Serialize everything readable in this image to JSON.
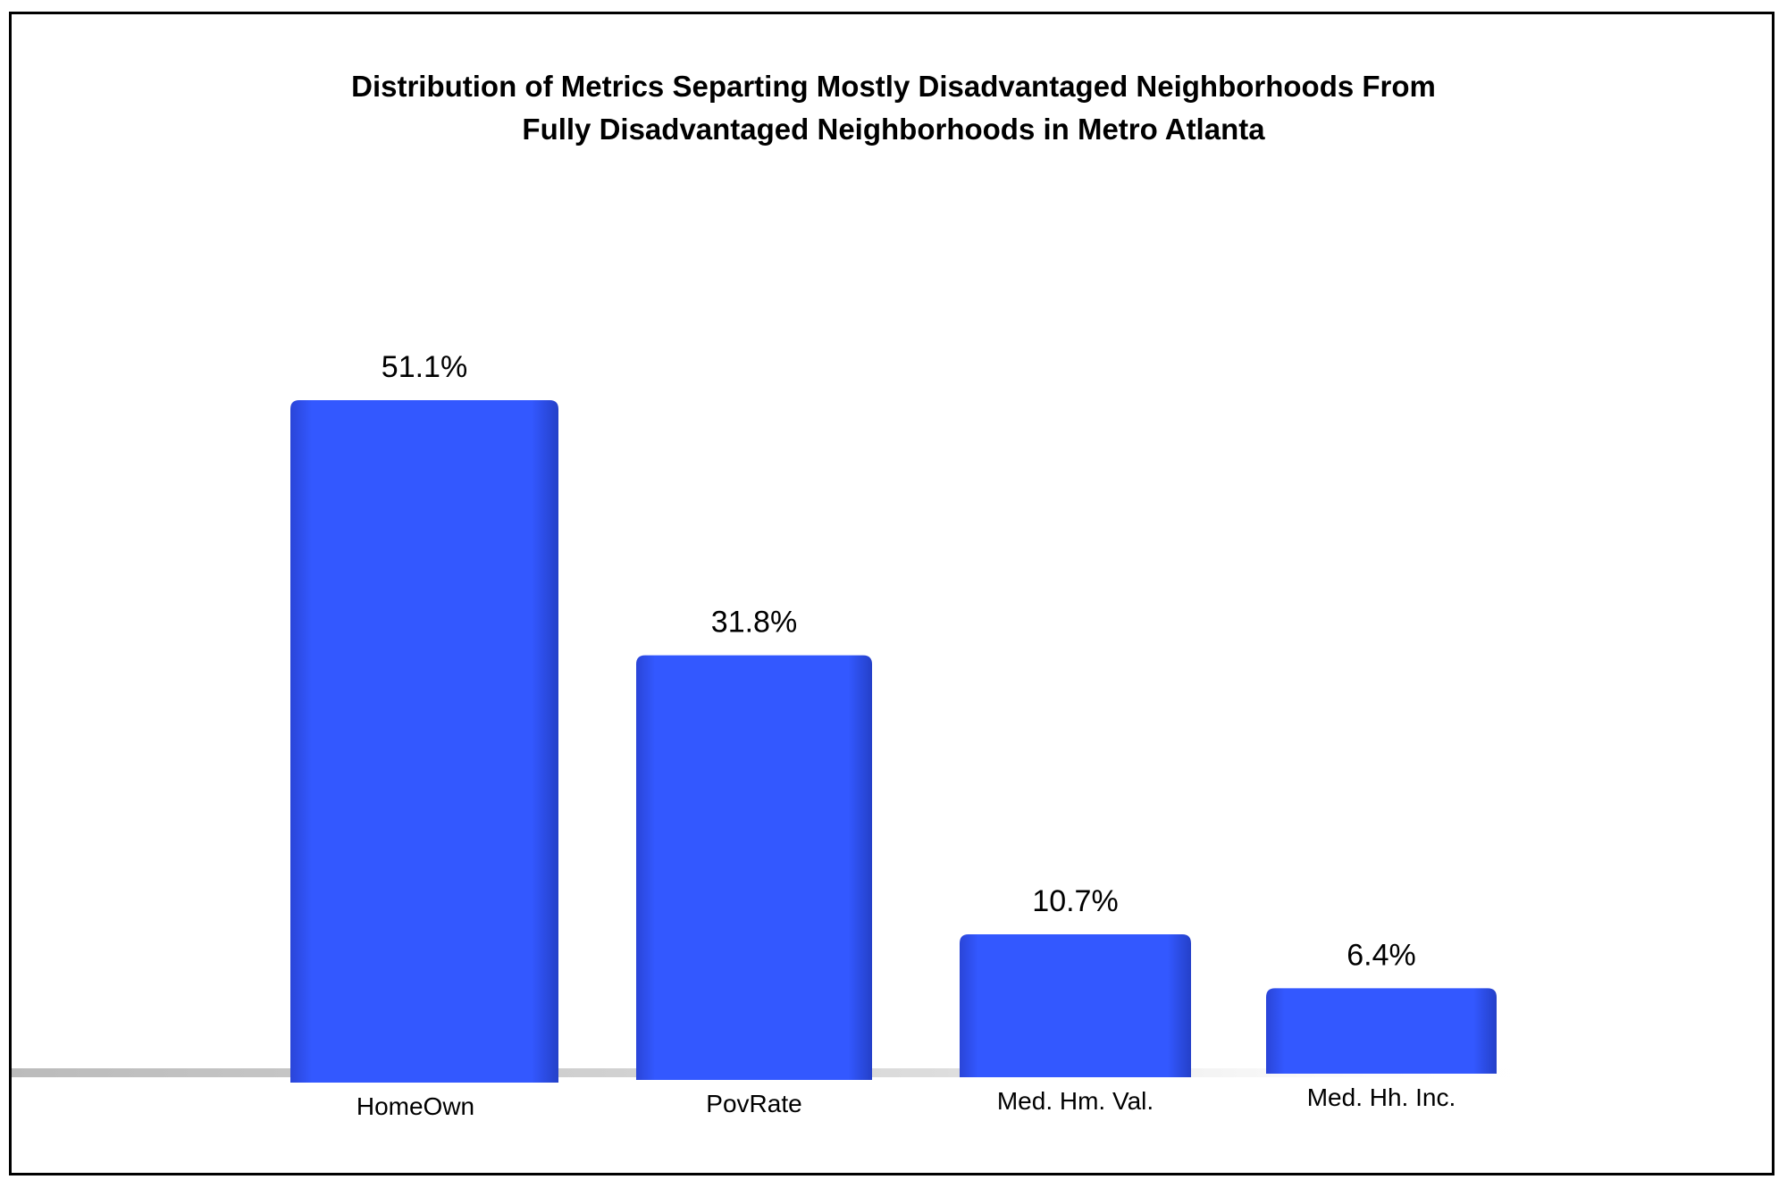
{
  "chart_data": {
    "type": "bar",
    "title": "Distribution of Metrics Separting Mostly Disadvantaged Neighborhoods From Fully Disadvantaged Neighborhoods in Metro Atlanta",
    "title_lines": [
      "Distribution of Metrics Separting Mostly Disadvantaged Neighborhoods From",
      "Fully Disadvantaged Neighborhoods in Metro Atlanta"
    ],
    "categories": [
      "HomeOwn",
      "PovRate",
      "Med. Hm. Val.",
      "Med. Hh. Inc."
    ],
    "values": [
      51.1,
      31.8,
      10.7,
      6.4
    ],
    "data_labels": [
      "51.1%",
      "31.8%",
      "10.7%",
      "6.4%"
    ],
    "xlabel": "",
    "ylabel": "",
    "ylim": [
      0,
      55
    ],
    "grid": false,
    "legend": "none",
    "bar_color": "#3358FF"
  }
}
